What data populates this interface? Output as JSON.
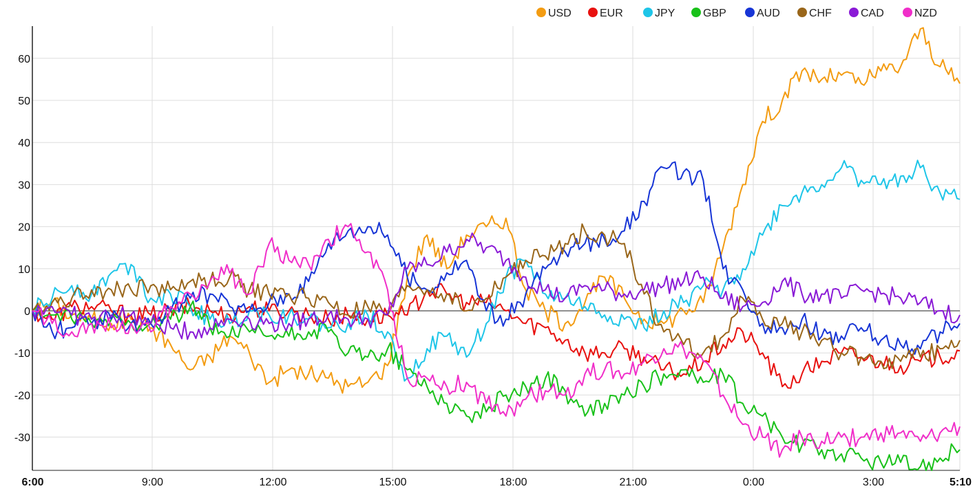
{
  "chart_data": {
    "type": "line",
    "title": "",
    "xlabel": "",
    "ylabel": "",
    "x_ticks": [
      "6:00",
      "9:00",
      "12:00",
      "15:00",
      "18:00",
      "21:00",
      "0:00",
      "3:00",
      "5:10"
    ],
    "x_ticks_bold": [
      "6:00",
      "5:10"
    ],
    "y_ticks": [
      60,
      50,
      40,
      30,
      20,
      10,
      0,
      -10,
      -20,
      -30
    ],
    "ylim": [
      -38,
      68
    ],
    "grid": true,
    "legend_position": "top-right",
    "x": [
      "6:00",
      "6:30",
      "7:00",
      "7:30",
      "8:00",
      "8:30",
      "9:00",
      "9:30",
      "10:00",
      "10:30",
      "11:00",
      "11:30",
      "12:00",
      "12:30",
      "13:00",
      "13:30",
      "14:00",
      "14:30",
      "15:00",
      "15:30",
      "16:00",
      "16:30",
      "17:00",
      "17:30",
      "18:00",
      "18:30",
      "19:00",
      "19:30",
      "20:00",
      "20:30",
      "21:00",
      "21:30",
      "22:00",
      "22:30",
      "23:00",
      "23:30",
      "0:00",
      "0:30",
      "1:00",
      "1:30",
      "2:00",
      "2:30",
      "3:00",
      "3:30",
      "4:00",
      "4:30",
      "5:00",
      "5:10"
    ],
    "series": [
      {
        "name": "USD",
        "color": "#f39c12",
        "values": [
          0,
          2,
          -1,
          -2,
          -3,
          -2,
          -4,
          -8,
          -14,
          -11,
          -6,
          -10,
          -17,
          -14,
          -15,
          -16,
          -18,
          -17,
          -13,
          8,
          18,
          10,
          18,
          20,
          22,
          5,
          0,
          -3,
          2,
          8,
          3,
          -2,
          -3,
          0,
          2,
          15,
          30,
          45,
          50,
          57,
          55,
          56,
          54,
          57,
          58,
          67,
          58,
          54
        ]
      },
      {
        "name": "EUR",
        "color": "#e8110f",
        "values": [
          0,
          -2,
          1,
          1,
          0,
          -1,
          -1,
          0,
          1,
          0,
          -1,
          1,
          0,
          0,
          -1,
          -2,
          -1,
          -2,
          -1,
          -1,
          5,
          4,
          2,
          2,
          0,
          -3,
          -4,
          -7,
          -10,
          -10,
          -9,
          -11,
          -14,
          -15,
          -12,
          -8,
          -5,
          -10,
          -18,
          -15,
          -12,
          -10,
          -11,
          -12,
          -13,
          -12,
          -11,
          -9.5
        ]
      },
      {
        "name": "JPY",
        "color": "#1ec5e8",
        "values": [
          0,
          3,
          6,
          4,
          9,
          11,
          3,
          4,
          1,
          -2,
          -3,
          0,
          -1,
          -1,
          -2,
          -4,
          -3,
          -1,
          -5,
          -16,
          -9,
          -6,
          -11,
          -3,
          8,
          12,
          4,
          3,
          1,
          -1,
          -2,
          -4,
          0,
          2,
          6,
          5,
          10,
          18,
          25,
          28,
          30,
          34,
          31,
          30,
          32,
          34,
          28,
          26.5
        ]
      },
      {
        "name": "GBP",
        "color": "#19c11a",
        "values": [
          0,
          -1,
          -2,
          -3,
          -2,
          -3,
          -3,
          -2,
          1,
          -4,
          -6,
          -5,
          -6,
          -6,
          -5,
          -5,
          -10,
          -11,
          -9,
          -14,
          -18,
          -22,
          -25,
          -24,
          -20,
          -18,
          -16,
          -19,
          -25,
          -22,
          -20,
          -18,
          -15,
          -14,
          -17,
          -15,
          -22,
          -25,
          -30,
          -32,
          -33,
          -34,
          -35,
          -36,
          -36,
          -37,
          -35,
          -33
        ]
      },
      {
        "name": "AUD",
        "color": "#1735d6",
        "values": [
          0,
          -5,
          -4,
          -3,
          -2,
          -3,
          -3,
          0,
          3,
          4,
          1,
          0,
          2,
          4,
          7,
          16,
          19,
          20,
          18,
          8,
          5,
          9,
          12,
          0,
          -2,
          4,
          10,
          14,
          16,
          17,
          19,
          26,
          34,
          33,
          31,
          10,
          5,
          -3,
          -4,
          -2,
          -6,
          -6,
          -4,
          -7,
          -8,
          -9,
          -5,
          -3
        ]
      },
      {
        "name": "CHF",
        "color": "#99661a",
        "values": [
          0,
          2,
          3,
          5,
          5,
          5,
          6,
          5,
          7,
          7,
          8,
          5,
          4,
          4,
          3,
          2,
          -1,
          1,
          -1,
          6,
          5,
          4,
          0,
          3,
          8,
          12,
          13,
          16,
          19,
          18,
          16,
          4,
          -5,
          -8,
          -10,
          -6,
          3,
          -2,
          -3,
          -5,
          -7,
          -10,
          -11,
          -12,
          -12,
          -11,
          -9,
          -7
        ]
      },
      {
        "name": "CAD",
        "color": "#8a1ad6",
        "values": [
          0,
          1,
          -1,
          -2,
          -1,
          -1,
          -3,
          -4,
          -5,
          -4,
          -2,
          -2,
          -3,
          -3,
          -2,
          -1,
          -2,
          -2,
          -1,
          10,
          11,
          14,
          17,
          15,
          12,
          8,
          5,
          3,
          6,
          5,
          4,
          5,
          6,
          7,
          8,
          3,
          1,
          2,
          7,
          4,
          4,
          3,
          5,
          4,
          3,
          2,
          0,
          -1
        ]
      },
      {
        "name": "NZD",
        "color": "#f02ec9",
        "values": [
          0,
          -3,
          -5,
          -3,
          -4,
          -3,
          -5,
          1,
          4,
          7,
          9,
          4,
          16,
          12,
          11,
          17,
          20,
          14,
          5,
          -16,
          -16,
          -18,
          -17,
          -22,
          -25,
          -21,
          -19,
          -20,
          -15,
          -14,
          -15,
          -12,
          -9,
          -9,
          -12,
          -20,
          -27,
          -30,
          -33,
          -30,
          -31,
          -30,
          -30,
          -29,
          -29,
          -31,
          -29,
          -27.5
        ]
      }
    ]
  }
}
